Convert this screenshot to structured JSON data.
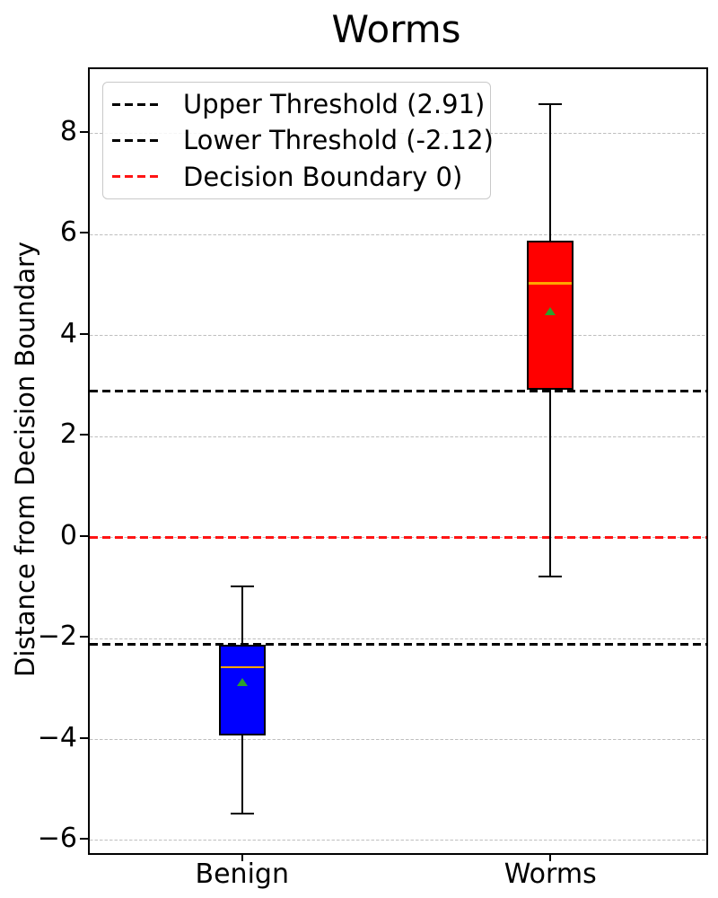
{
  "title": "Worms",
  "ylabel": "Distance from Decision Boundary",
  "legend": {
    "items": [
      {
        "name": "upper-threshold",
        "label": "Upper Threshold (2.91)",
        "color": "#000000"
      },
      {
        "name": "lower-threshold",
        "label": "Lower Threshold (-2.12)",
        "color": "#000000"
      },
      {
        "name": "decision-boundary",
        "label": "Decision Boundary 0)",
        "color": "#ff1414"
      }
    ]
  },
  "chart_data": {
    "type": "box",
    "title": "Worms",
    "xlabel": "",
    "ylabel": "Distance from Decision Boundary",
    "categories": [
      "Benign",
      "Worms"
    ],
    "ylim": [
      -6.25,
      9.28
    ],
    "yticks": [
      8,
      6,
      4,
      2,
      0,
      -2,
      -4,
      -6
    ],
    "ytick_labels": [
      "8",
      "6",
      "4",
      "2",
      "0",
      "−2",
      "−4",
      "−6"
    ],
    "grid": true,
    "legend_position": "upper-left",
    "series": [
      {
        "name": "Benign",
        "box_color": "#0000ff",
        "whisker_low": -5.5,
        "q1": -3.95,
        "median": -2.6,
        "q3": -2.15,
        "whisker_high": -1.0,
        "mean": -2.9
      },
      {
        "name": "Worms",
        "box_color": "#ff0000",
        "whisker_low": -0.8,
        "q1": 2.9,
        "median": 5.0,
        "q3": 5.85,
        "whisker_high": 8.55,
        "mean": 4.45
      }
    ],
    "reference_lines": [
      {
        "name": "upper-threshold",
        "label": "Upper Threshold (2.91)",
        "value": 2.91,
        "color": "#000000",
        "style": "dashed"
      },
      {
        "name": "lower-threshold",
        "label": "Lower Threshold (-2.12)",
        "value": -2.12,
        "color": "#000000",
        "style": "dashed"
      },
      {
        "name": "decision-boundary",
        "label": "Decision Boundary 0)",
        "value": 0,
        "color": "#ff1414",
        "style": "dashed"
      }
    ],
    "median_color": "#ffa500",
    "mean_marker_color": "#2ca02c",
    "mean_marker_shape": "triangle-up"
  }
}
